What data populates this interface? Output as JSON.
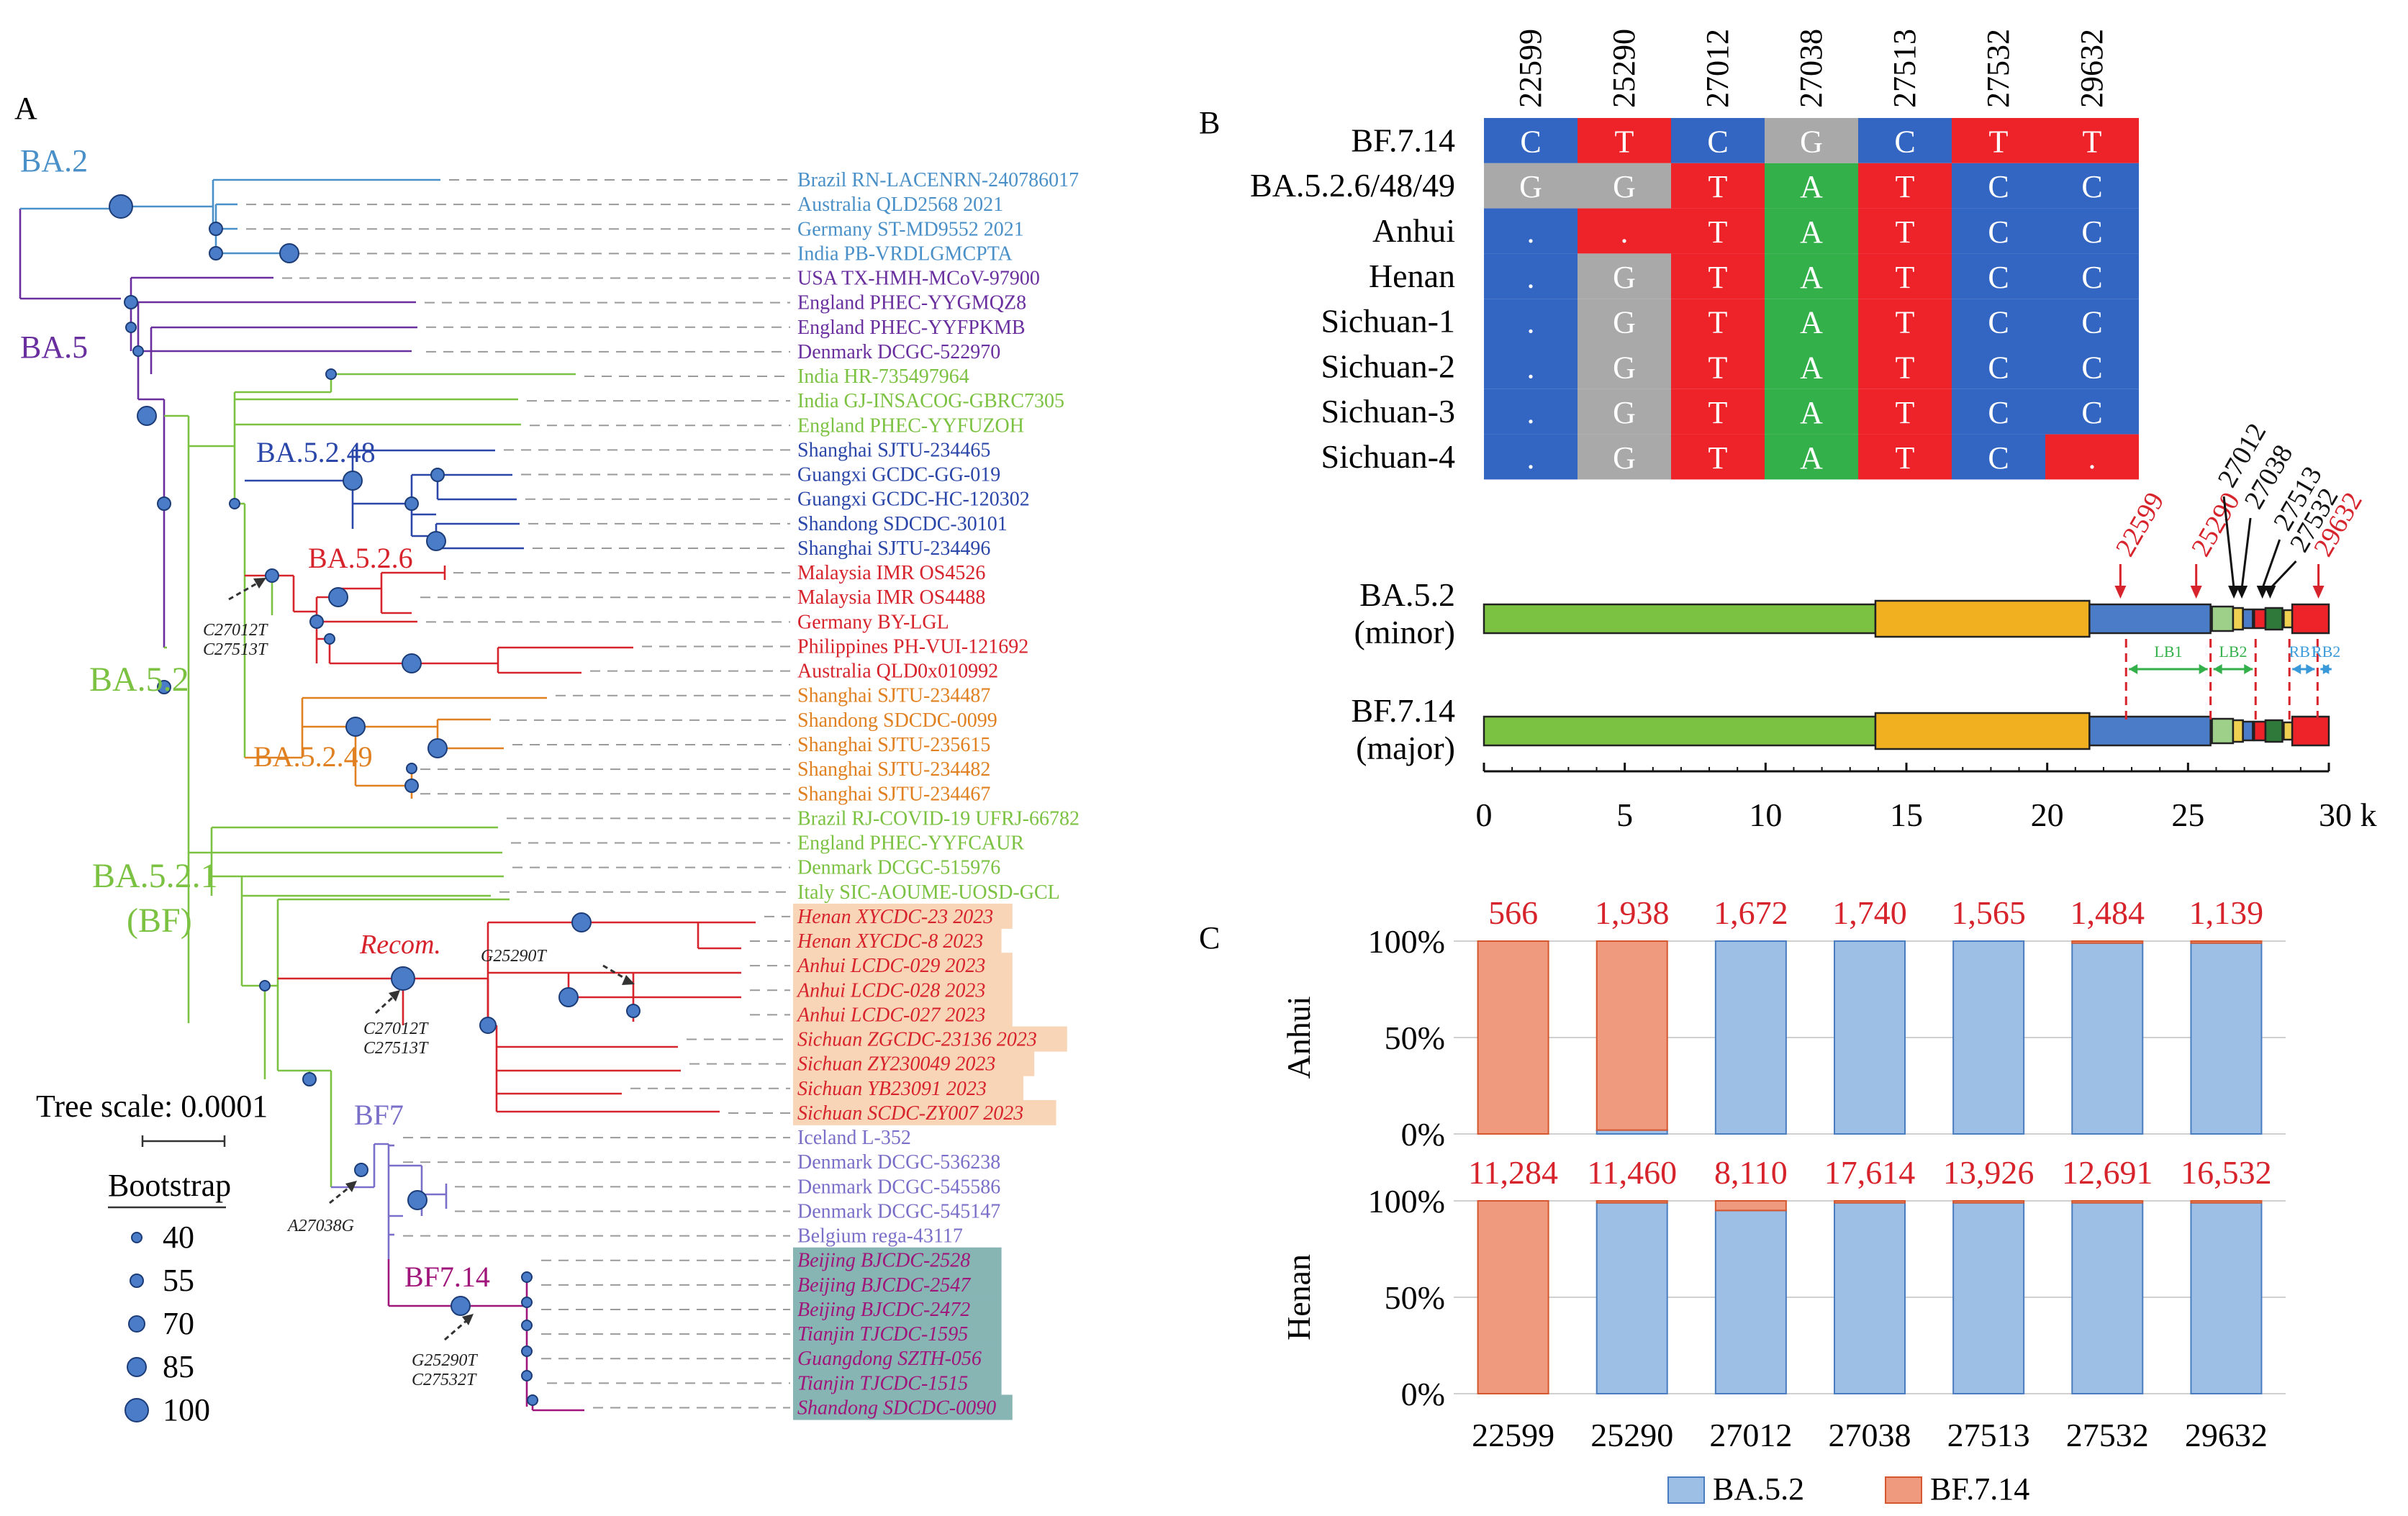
{
  "panels": {
    "a": "A",
    "b": "B",
    "c": "C"
  },
  "tree": {
    "clades": [
      {
        "label": "BA.2",
        "color": "#4a90c8"
      },
      {
        "label": "BA.5",
        "color": "#6a2f9e"
      },
      {
        "label": "BA.5.2.48",
        "color": "#2a46a8"
      },
      {
        "label": "BA.5.2.6",
        "color": "#d7232b"
      },
      {
        "label": "BA.5.2",
        "color": "#7cc242"
      },
      {
        "label": "BA.5.2.49",
        "color": "#e08020"
      },
      {
        "label": "BA.5.2.1",
        "color": "#7cc242"
      },
      {
        "label": "(BF)",
        "color": "#7cc242"
      },
      {
        "label": "Recom.",
        "color": "#d7232b"
      },
      {
        "label": "BF7",
        "color": "#7a6fc8"
      },
      {
        "label": "BF7.14",
        "color": "#a0157a"
      }
    ],
    "mutations": [
      "C27012T",
      "C27513T",
      "G25290T",
      "C27012T",
      "C27513T",
      "A27038G",
      "G25290T",
      "C27532T"
    ],
    "tips": [
      {
        "name": "Brazil RN-LACENRN-240786017",
        "color": "#4a90c8"
      },
      {
        "name": "Australia QLD2568 2021",
        "color": "#4a90c8"
      },
      {
        "name": "Germany ST-MD9552 2021",
        "color": "#4a90c8"
      },
      {
        "name": "India PB-VRDLGMCPTA",
        "color": "#4a90c8"
      },
      {
        "name": "USA TX-HMH-MCoV-97900",
        "color": "#6a2f9e"
      },
      {
        "name": "England PHEC-YYGMQZ8",
        "color": "#6a2f9e"
      },
      {
        "name": "England PHEC-YYFPKMB",
        "color": "#6a2f9e"
      },
      {
        "name": "Denmark DCGC-522970",
        "color": "#6a2f9e"
      },
      {
        "name": "India HR-735497964",
        "color": "#7cc242"
      },
      {
        "name": "India GJ-INSACOG-GBRC7305",
        "color": "#7cc242"
      },
      {
        "name": "England PHEC-YYFUZOH",
        "color": "#7cc242"
      },
      {
        "name": "Shanghai SJTU-234465",
        "color": "#2a46a8"
      },
      {
        "name": "Guangxi GCDC-GG-019",
        "color": "#2a46a8"
      },
      {
        "name": "Guangxi GCDC-HC-120302",
        "color": "#2a46a8"
      },
      {
        "name": "Shandong SDCDC-30101",
        "color": "#2a46a8"
      },
      {
        "name": "Shanghai SJTU-234496",
        "color": "#2a46a8"
      },
      {
        "name": "Malaysia IMR OS4526",
        "color": "#d7232b"
      },
      {
        "name": "Malaysia IMR OS4488",
        "color": "#d7232b"
      },
      {
        "name": "Germany BY-LGL",
        "color": "#d7232b"
      },
      {
        "name": "Philippines PH-VUI-121692",
        "color": "#d7232b"
      },
      {
        "name": "Australia QLD0x010992",
        "color": "#d7232b"
      },
      {
        "name": "Shanghai SJTU-234487",
        "color": "#e08020"
      },
      {
        "name": "Shandong SDCDC-0099",
        "color": "#e08020"
      },
      {
        "name": "Shanghai SJTU-235615",
        "color": "#e08020"
      },
      {
        "name": "Shanghai SJTU-234482",
        "color": "#e08020"
      },
      {
        "name": "Shanghai SJTU-234467",
        "color": "#e08020"
      },
      {
        "name": "Brazil RJ-COVID-19 UFRJ-66782",
        "color": "#7cc242"
      },
      {
        "name": "England PHEC-YYFCAUR",
        "color": "#7cc242"
      },
      {
        "name": "Denmark DCGC-515976",
        "color": "#7cc242"
      },
      {
        "name": "Italy SIC-AOUME-UOSD-GCL",
        "color": "#7cc242"
      },
      {
        "name": "Henan XYCDC-23 2023",
        "color": "#d7232b",
        "highlight": "#f9d5b8"
      },
      {
        "name": "Henan XYCDC-8 2023",
        "color": "#d7232b",
        "highlight": "#f9d5b8"
      },
      {
        "name": "Anhui LCDC-029 2023",
        "color": "#d7232b",
        "highlight": "#f9d5b8"
      },
      {
        "name": "Anhui LCDC-028 2023",
        "color": "#d7232b",
        "highlight": "#f9d5b8"
      },
      {
        "name": "Anhui LCDC-027 2023",
        "color": "#d7232b",
        "highlight": "#f9d5b8"
      },
      {
        "name": "Sichuan ZGCDC-23136 2023",
        "color": "#d7232b",
        "highlight": "#f9d5b8"
      },
      {
        "name": "Sichuan ZY230049 2023",
        "color": "#d7232b",
        "highlight": "#f9d5b8"
      },
      {
        "name": "Sichuan YB23091 2023",
        "color": "#d7232b",
        "highlight": "#f9d5b8"
      },
      {
        "name": "Sichuan SCDC-ZY007 2023",
        "color": "#d7232b",
        "highlight": "#f9d5b8"
      },
      {
        "name": "Iceland L-352",
        "color": "#7a6fc8"
      },
      {
        "name": "Denmark DCGC-536238",
        "color": "#7a6fc8"
      },
      {
        "name": "Denmark DCGC-545586",
        "color": "#7a6fc8"
      },
      {
        "name": "Denmark DCGC-545147",
        "color": "#7a6fc8"
      },
      {
        "name": "Belgium rega-43117",
        "color": "#7a6fc8"
      },
      {
        "name": "Beijing BJCDC-2528",
        "color": "#a0157a",
        "highlight": "#86b5b4"
      },
      {
        "name": "Beijing BJCDC-2547",
        "color": "#a0157a",
        "highlight": "#86b5b4"
      },
      {
        "name": "Beijing BJCDC-2472",
        "color": "#a0157a",
        "highlight": "#86b5b4"
      },
      {
        "name": "Tianjin TJCDC-1595",
        "color": "#a0157a",
        "highlight": "#86b5b4"
      },
      {
        "name": "Guangdong SZTH-056",
        "color": "#a0157a",
        "highlight": "#86b5b4"
      },
      {
        "name": "Tianjin TJCDC-1515",
        "color": "#a0157a",
        "highlight": "#86b5b4"
      },
      {
        "name": "Shandong SDCDC-0090",
        "color": "#a0157a",
        "highlight": "#86b5b4"
      }
    ],
    "scale": {
      "label": "Tree scale: 0.0001"
    },
    "bootstrap": {
      "title": "Bootstrap",
      "values": [
        "40",
        "55",
        "70",
        "85",
        "100"
      ]
    }
  },
  "alignment": {
    "positions": [
      "22599",
      "25290",
      "27012",
      "27038",
      "27513",
      "27532",
      "29632"
    ],
    "rows": [
      {
        "label": "BF.7.14",
        "bases": [
          "C",
          "T",
          "C",
          "G",
          "C",
          "T",
          "T"
        ]
      },
      {
        "label": "BA.5.2.6/48/49",
        "bases": [
          "G",
          "G",
          "T",
          "A",
          "T",
          "C",
          "C"
        ]
      },
      {
        "label": "Anhui",
        "bases": [
          ".",
          ".",
          "T",
          "A",
          "T",
          "C",
          "C"
        ]
      },
      {
        "label": "Henan",
        "bases": [
          ".",
          "G",
          "T",
          "A",
          "T",
          "C",
          "C"
        ]
      },
      {
        "label": "Sichuan-1",
        "bases": [
          ".",
          "G",
          "T",
          "A",
          "T",
          "C",
          "C"
        ]
      },
      {
        "label": "Sichuan-2",
        "bases": [
          ".",
          "G",
          "T",
          "A",
          "T",
          "C",
          "C"
        ]
      },
      {
        "label": "Sichuan-3",
        "bases": [
          ".",
          "G",
          "T",
          "A",
          "T",
          "C",
          "C"
        ]
      },
      {
        "label": "Sichuan-4",
        "bases": [
          ".",
          "G",
          "T",
          "A",
          "T",
          "C",
          "."
        ]
      }
    ],
    "cell_colors": [
      [
        "#3366c2",
        "#ee2229",
        "#3366c2",
        "#a9a9a9",
        "#3366c2",
        "#ee2229",
        "#ee2229"
      ],
      [
        "#a9a9a9",
        "#a9a9a9",
        "#ee2229",
        "#33b04a",
        "#ee2229",
        "#3366c2",
        "#3366c2"
      ],
      [
        "#3366c2",
        "#ee2229",
        "#ee2229",
        "#33b04a",
        "#ee2229",
        "#3366c2",
        "#3366c2"
      ],
      [
        "#3366c2",
        "#a9a9a9",
        "#ee2229",
        "#33b04a",
        "#ee2229",
        "#3366c2",
        "#3366c2"
      ],
      [
        "#3366c2",
        "#a9a9a9",
        "#ee2229",
        "#33b04a",
        "#ee2229",
        "#3366c2",
        "#3366c2"
      ],
      [
        "#3366c2",
        "#a9a9a9",
        "#ee2229",
        "#33b04a",
        "#ee2229",
        "#3366c2",
        "#3366c2"
      ],
      [
        "#3366c2",
        "#a9a9a9",
        "#ee2229",
        "#33b04a",
        "#ee2229",
        "#3366c2",
        "#3366c2"
      ],
      [
        "#3366c2",
        "#a9a9a9",
        "#ee2229",
        "#33b04a",
        "#ee2229",
        "#3366c2",
        "#ee2229"
      ]
    ]
  },
  "genome": {
    "red_markers": [
      "22599",
      "25290",
      "29632"
    ],
    "black_markers": [
      "27012",
      "27038",
      "27513",
      "27532"
    ],
    "tracks": [
      {
        "line1": "BA.5.2",
        "line2": "(minor)"
      },
      {
        "line1": "BF.7.14",
        "line2": "(major)"
      }
    ],
    "segments": [
      "LB1",
      "LB2",
      "RB1",
      "RB2"
    ],
    "axis_ticks": [
      "0",
      "5",
      "10",
      "15",
      "20",
      "25"
    ],
    "axis_last": "30 k",
    "axis_range": [
      0,
      30
    ]
  },
  "chart_data": {
    "type": "bar",
    "categories": [
      "22599",
      "25290",
      "27012",
      "27038",
      "27513",
      "27532",
      "29632"
    ],
    "ylim": [
      0,
      100
    ],
    "ytick_labels": [
      "100%",
      "50%",
      "0%"
    ],
    "series_names": [
      "BA.5.2",
      "BF.7.14"
    ],
    "series_colors": {
      "BA.5.2": "#9dbfe6",
      "BF.7.14": "#ef9a7f"
    },
    "legend_position": "bottom",
    "panels": [
      {
        "ylabel": "Anhui",
        "depth_labels": [
          "566",
          "1,938",
          "1,672",
          "1,740",
          "1,565",
          "1,484",
          "1,139"
        ],
        "ba52_percent": [
          0,
          2,
          100,
          100,
          100,
          99,
          99
        ],
        "bf714_percent": [
          100,
          98,
          0,
          0,
          0,
          1,
          1
        ]
      },
      {
        "ylabel": "Henan",
        "depth_labels": [
          "11,284",
          "11,460",
          "8,110",
          "17,614",
          "13,926",
          "12,691",
          "16,532"
        ],
        "ba52_percent": [
          0,
          99,
          95,
          99,
          99,
          99,
          99
        ],
        "bf714_percent": [
          100,
          1,
          5,
          1,
          1,
          1,
          1
        ]
      }
    ]
  }
}
